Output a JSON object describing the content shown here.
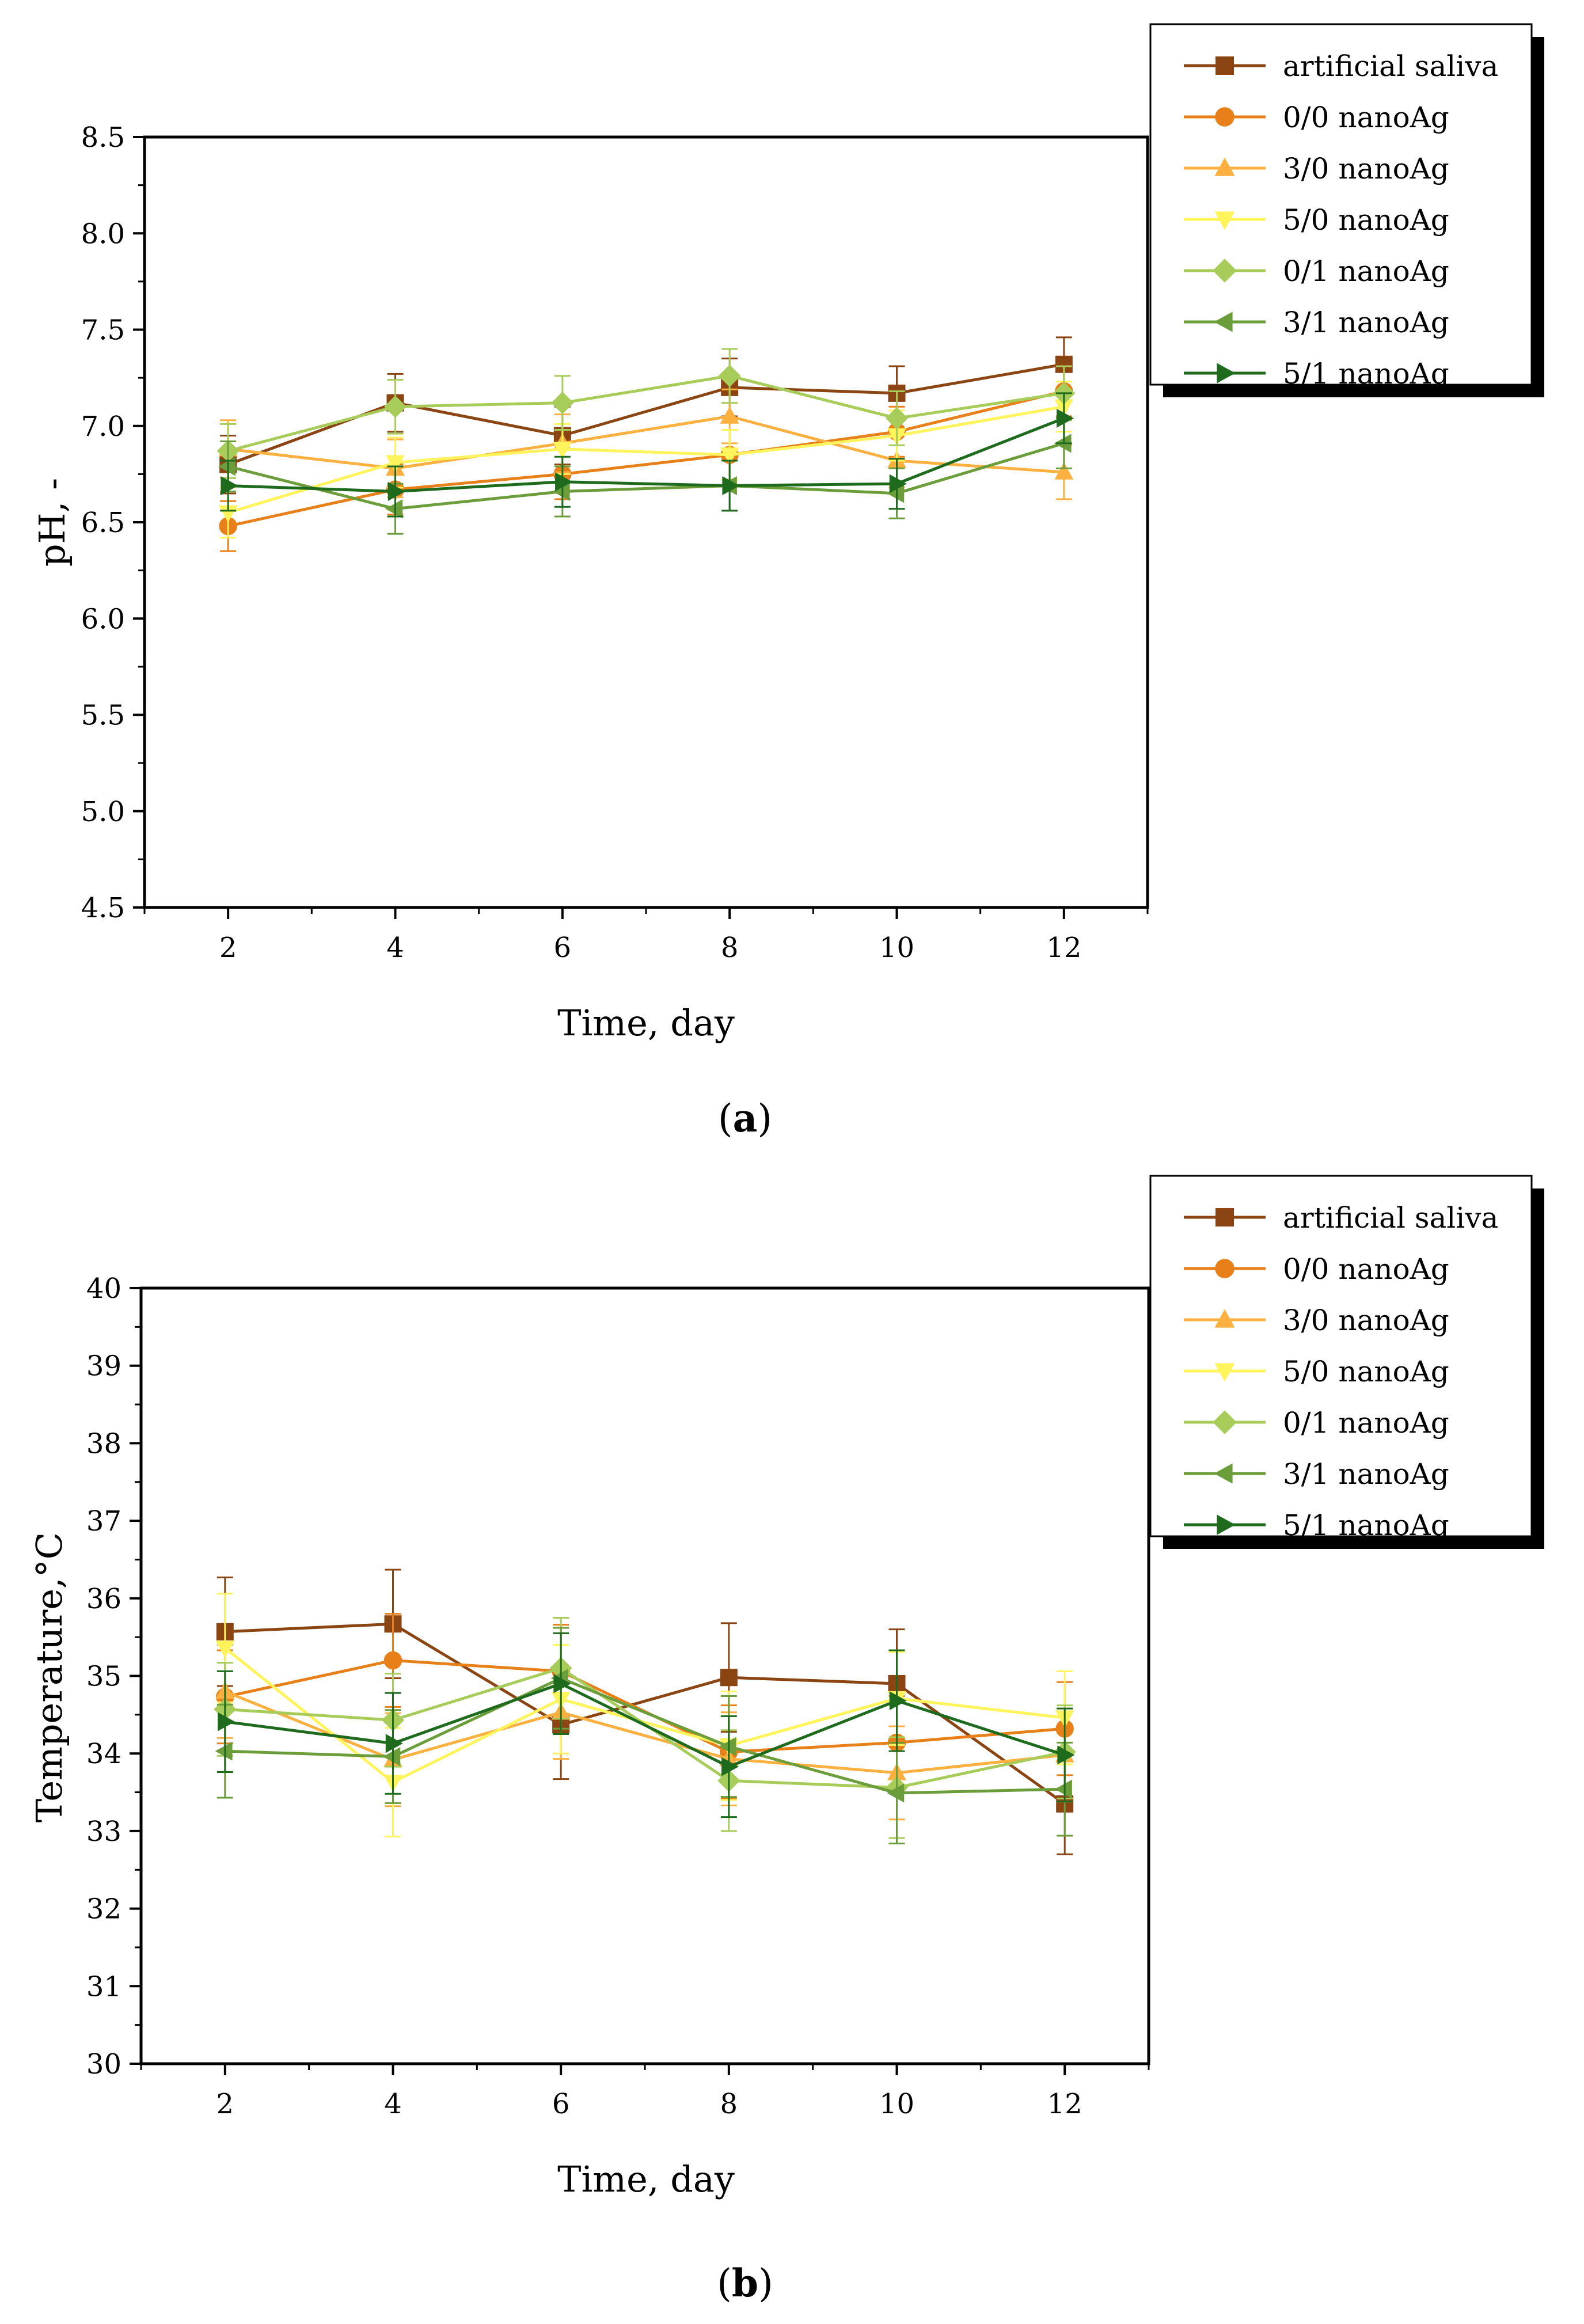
{
  "chart_data": [
    {
      "type": "line",
      "panel_label": "a",
      "xlabel": "Time, day",
      "ylabel": "pH, -",
      "xlim": [
        1,
        13
      ],
      "ylim": [
        4.5,
        8.5
      ],
      "x": [
        2,
        4,
        6,
        8,
        10,
        12
      ],
      "xticks": [
        "2",
        "4",
        "6",
        "8",
        "10",
        "12"
      ],
      "yticks": [
        "4.5",
        "5.0",
        "5.5",
        "6.0",
        "6.5",
        "7.0",
        "7.5",
        "8.0",
        "8.5"
      ],
      "legend_position": "top-right, outside plot",
      "series": [
        {
          "name": "artificial saliva",
          "color": "#8B4513",
          "marker": "square",
          "values": [
            6.8,
            7.12,
            6.95,
            7.2,
            7.17,
            7.32
          ],
          "errors": [
            0.15,
            0.15,
            0.15,
            0.15,
            0.14,
            0.14
          ]
        },
        {
          "name": "0/0 nanoAg",
          "color": "#E8801A",
          "marker": "circle",
          "values": [
            6.48,
            6.67,
            6.75,
            6.85,
            6.97,
            7.18
          ],
          "errors": [
            0.13,
            0.13,
            0.13,
            0.13,
            0.13,
            0.13
          ]
        },
        {
          "name": "3/0 nanoAg",
          "color": "#FBB040",
          "marker": "triangle-up",
          "values": [
            6.88,
            6.78,
            6.91,
            7.05,
            6.82,
            6.76
          ],
          "errors": [
            0.15,
            0.15,
            0.15,
            0.14,
            0.14,
            0.14
          ]
        },
        {
          "name": "5/0 nanoAg",
          "color": "#FFF45C",
          "marker": "triangle-down",
          "values": [
            6.55,
            6.81,
            6.88,
            6.85,
            6.95,
            7.1
          ],
          "errors": [
            0.13,
            0.13,
            0.13,
            0.13,
            0.13,
            0.13
          ]
        },
        {
          "name": "0/1 nanoAg",
          "color": "#A8CC5A",
          "marker": "diamond",
          "values": [
            6.87,
            7.1,
            7.12,
            7.26,
            7.04,
            7.17
          ],
          "errors": [
            0.14,
            0.14,
            0.14,
            0.14,
            0.14,
            0.14
          ]
        },
        {
          "name": "3/1 nanoAg",
          "color": "#6B9E3A",
          "marker": "triangle-left",
          "values": [
            6.79,
            6.57,
            6.66,
            6.69,
            6.65,
            6.91
          ],
          "errors": [
            0.13,
            0.13,
            0.13,
            0.13,
            0.13,
            0.13
          ]
        },
        {
          "name": "5/1 nanoAg",
          "color": "#1E6B1E",
          "marker": "triangle-right",
          "values": [
            6.69,
            6.66,
            6.71,
            6.69,
            6.7,
            7.04
          ],
          "errors": [
            0.13,
            0.13,
            0.13,
            0.13,
            0.13,
            0.13
          ]
        }
      ]
    },
    {
      "type": "line",
      "panel_label": "b",
      "xlabel": "Time, day",
      "ylabel": "Temperature,°C",
      "xlim": [
        1,
        13
      ],
      "ylim": [
        30,
        40
      ],
      "x": [
        2,
        4,
        6,
        8,
        10,
        12
      ],
      "xticks": [
        "2",
        "4",
        "6",
        "8",
        "10",
        "12"
      ],
      "yticks": [
        "30",
        "31",
        "32",
        "33",
        "34",
        "35",
        "36",
        "37",
        "38",
        "39",
        "40"
      ],
      "legend_position": "top-right, outside plot",
      "series": [
        {
          "name": "artificial saliva",
          "color": "#8B4513",
          "marker": "square",
          "values": [
            35.57,
            35.67,
            34.37,
            34.98,
            34.9,
            33.35
          ],
          "errors": [
            0.7,
            0.7,
            0.7,
            0.7,
            0.7,
            0.65
          ]
        },
        {
          "name": "0/0 nanoAg",
          "color": "#E8801A",
          "marker": "circle",
          "values": [
            34.73,
            35.2,
            35.06,
            34.02,
            34.14,
            34.32
          ],
          "errors": [
            0.6,
            0.6,
            0.6,
            0.6,
            0.6,
            0.6
          ]
        },
        {
          "name": "3/0 nanoAg",
          "color": "#FBB040",
          "marker": "triangle-up",
          "values": [
            34.8,
            33.92,
            34.53,
            33.93,
            33.75,
            33.98
          ],
          "errors": [
            0.6,
            0.6,
            0.6,
            0.6,
            0.6,
            0.6
          ]
        },
        {
          "name": "5/0 nanoAg",
          "color": "#FFF45C",
          "marker": "triangle-down",
          "values": [
            35.36,
            33.63,
            34.7,
            34.1,
            34.71,
            34.46
          ],
          "errors": [
            0.7,
            0.7,
            0.7,
            0.7,
            0.6,
            0.6
          ]
        },
        {
          "name": "0/1 nanoAg",
          "color": "#A8CC5A",
          "marker": "diamond",
          "values": [
            34.57,
            34.43,
            35.1,
            33.65,
            33.56,
            34.02
          ],
          "errors": [
            0.6,
            0.6,
            0.65,
            0.65,
            0.65,
            0.6
          ]
        },
        {
          "name": "3/1 nanoAg",
          "color": "#6B9E3A",
          "marker": "triangle-left",
          "values": [
            34.03,
            33.96,
            34.97,
            34.09,
            33.49,
            33.54
          ],
          "errors": [
            0.6,
            0.6,
            0.65,
            0.65,
            0.65,
            0.6
          ]
        },
        {
          "name": "5/1 nanoAg",
          "color": "#1E6B1E",
          "marker": "triangle-right",
          "values": [
            34.41,
            34.13,
            34.9,
            33.83,
            34.68,
            33.98
          ],
          "errors": [
            0.65,
            0.65,
            0.65,
            0.65,
            0.65,
            0.6
          ]
        }
      ]
    }
  ]
}
